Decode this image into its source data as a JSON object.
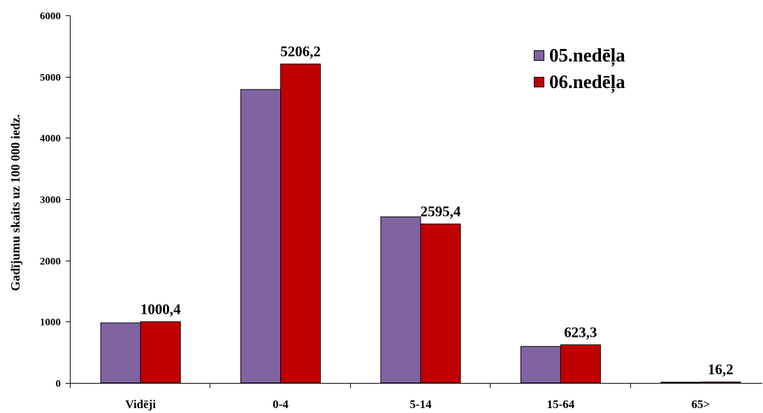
{
  "chart_data": {
    "type": "bar",
    "categories": [
      "Vidēji",
      "0-4",
      "5-14",
      "15-64",
      "65>"
    ],
    "series": [
      {
        "name": "05.nedēļa",
        "color": "#8064A2",
        "values": [
          981,
          4790,
          2712,
          596,
          12
        ]
      },
      {
        "name": "06.nedēļa",
        "color": "#C00000",
        "values": [
          1000.4,
          5206.2,
          2595.4,
          623.3,
          16.2
        ],
        "data_labels": [
          "1000,4",
          "5206,2",
          "2595,4",
          "623,3",
          "16,2"
        ]
      }
    ],
    "ylabel": "Gadījumu skaits uz 100 000 iedz.",
    "ylim": [
      0,
      6000
    ],
    "yticks": [
      0,
      1000,
      2000,
      3000,
      4000,
      5000,
      6000
    ],
    "grid": false,
    "legend": "top-right"
  }
}
